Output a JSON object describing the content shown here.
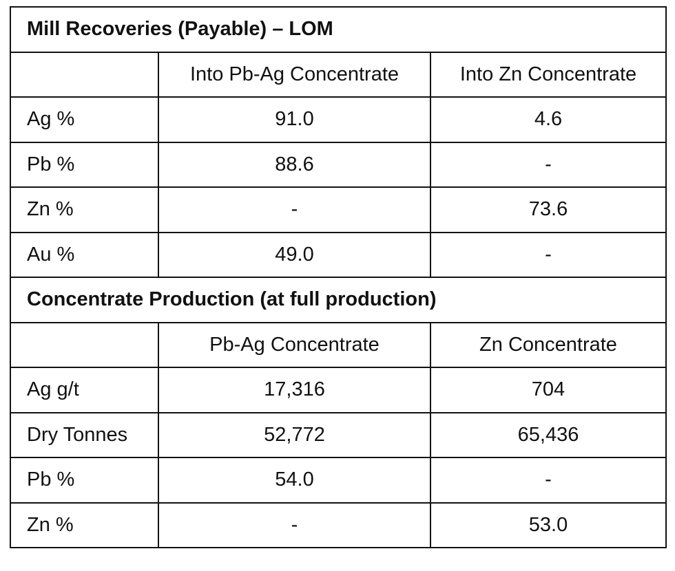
{
  "sections": [
    {
      "title": "Mill Recoveries (Payable) – LOM",
      "headers": [
        "",
        "Into Pb-Ag Concentrate",
        "Into Zn Concentrate"
      ],
      "rows": [
        [
          "Ag %",
          "91.0",
          "4.6"
        ],
        [
          "Pb %",
          "88.6",
          "-"
        ],
        [
          "Zn %",
          "-",
          "73.6"
        ],
        [
          "Au %",
          "49.0",
          "-"
        ]
      ]
    },
    {
      "title": "Concentrate Production (at full production)",
      "headers": [
        "",
        "Pb-Ag Concentrate",
        "Zn Concentrate"
      ],
      "rows": [
        [
          "Ag g/t",
          "17,316",
          "704"
        ],
        [
          "Dry Tonnes",
          "52,772",
          "65,436"
        ],
        [
          "Pb %",
          "54.0",
          "-"
        ],
        [
          "Zn %",
          "-",
          "53.0"
        ]
      ]
    }
  ]
}
